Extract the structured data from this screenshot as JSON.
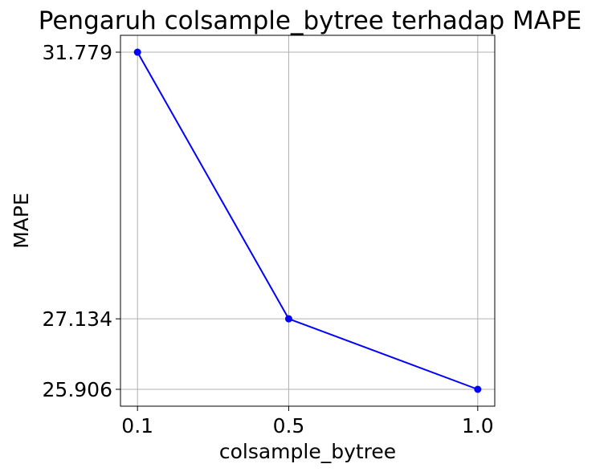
{
  "chart_data": {
    "type": "line",
    "title": "Pengaruh colsample_bytree terhadap MAPE",
    "xlabel": "colsample_bytree",
    "ylabel": "MAPE",
    "x": [
      0.1,
      0.5,
      1.0
    ],
    "x_tick_labels": [
      "0.1",
      "0.5",
      "1.0"
    ],
    "series": [
      {
        "values": [
          31.779,
          27.134,
          25.906
        ]
      }
    ],
    "y_ticks": [
      25.906,
      27.134,
      31.779
    ],
    "y_tick_labels": [
      "25.906",
      "27.134",
      "31.779"
    ],
    "grid": true,
    "line_color": "#0000ff",
    "marker_color": "#0000ff"
  }
}
